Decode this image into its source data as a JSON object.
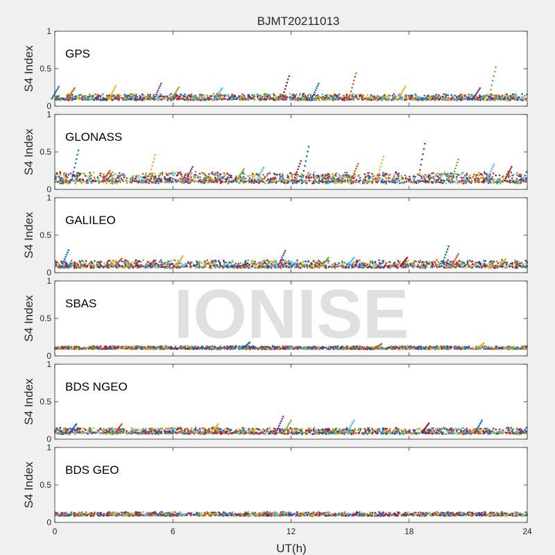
{
  "figure": {
    "title": "BJMT20211013",
    "xlabel": "UT(h)",
    "watermark": "IONISE",
    "background": "#f0f0f0",
    "axes_color": "#262626",
    "watermark_color": "#e0e0e0"
  },
  "chart_data": {
    "type": "scatter",
    "title": "BJMT20211013",
    "xlabel": "UT(h)",
    "ylabel": "S4 Index",
    "xlim": [
      0,
      24
    ],
    "ylim": [
      0,
      1
    ],
    "xticks": [
      0,
      6,
      12,
      18,
      24
    ],
    "yticks": [
      0,
      0.5,
      1
    ],
    "xtick_labels": [
      "0",
      "6",
      "12",
      "18",
      "24"
    ],
    "ytick_labels": [
      "0",
      "0.5",
      "1"
    ],
    "grid": false,
    "series_colors": [
      "#0072BD",
      "#D95319",
      "#EDB120",
      "#7E2F8E",
      "#77AC30",
      "#4DBEEE",
      "#A2142F"
    ],
    "panels": [
      {
        "label": "GPS",
        "baseline": 0.1,
        "spread": 0.04,
        "spikes": [
          {
            "x": 0.2,
            "y": 0.26
          },
          {
            "x": 1.0,
            "y": 0.24
          },
          {
            "x": 3.1,
            "y": 0.27
          },
          {
            "x": 5.4,
            "y": 0.3
          },
          {
            "x": 6.3,
            "y": 0.25
          },
          {
            "x": 8.5,
            "y": 0.24
          },
          {
            "x": 11.9,
            "y": 0.4
          },
          {
            "x": 13.4,
            "y": 0.3
          },
          {
            "x": 15.3,
            "y": 0.44
          },
          {
            "x": 17.8,
            "y": 0.26
          },
          {
            "x": 21.6,
            "y": 0.24
          },
          {
            "x": 22.4,
            "y": 0.52
          }
        ]
      },
      {
        "label": "GLONASS",
        "baseline": 0.12,
        "spread": 0.07,
        "spikes": [
          {
            "x": 1.2,
            "y": 0.52
          },
          {
            "x": 2.8,
            "y": 0.25
          },
          {
            "x": 5.1,
            "y": 0.46
          },
          {
            "x": 7.0,
            "y": 0.3
          },
          {
            "x": 9.6,
            "y": 0.27
          },
          {
            "x": 10.6,
            "y": 0.29
          },
          {
            "x": 12.5,
            "y": 0.38
          },
          {
            "x": 12.9,
            "y": 0.57
          },
          {
            "x": 15.4,
            "y": 0.34
          },
          {
            "x": 16.7,
            "y": 0.44
          },
          {
            "x": 18.8,
            "y": 0.61
          },
          {
            "x": 20.5,
            "y": 0.4
          },
          {
            "x": 22.3,
            "y": 0.33
          },
          {
            "x": 23.2,
            "y": 0.3
          }
        ]
      },
      {
        "label": "GALILEO",
        "baseline": 0.09,
        "spread": 0.05,
        "spikes": [
          {
            "x": 0.7,
            "y": 0.3
          },
          {
            "x": 3.4,
            "y": 0.19
          },
          {
            "x": 6.5,
            "y": 0.22
          },
          {
            "x": 11.7,
            "y": 0.29
          },
          {
            "x": 13.9,
            "y": 0.2
          },
          {
            "x": 15.2,
            "y": 0.2
          },
          {
            "x": 17.9,
            "y": 0.2
          },
          {
            "x": 20.0,
            "y": 0.35
          },
          {
            "x": 20.5,
            "y": 0.25
          },
          {
            "x": 22.9,
            "y": 0.18
          }
        ]
      },
      {
        "label": "SBAS",
        "baseline": 0.1,
        "spread": 0.02,
        "spikes": [
          {
            "x": 9.9,
            "y": 0.18
          },
          {
            "x": 16.6,
            "y": 0.16
          },
          {
            "x": 21.8,
            "y": 0.17
          }
        ]
      },
      {
        "label": "BDS NGEO",
        "baseline": 0.09,
        "spread": 0.04,
        "spikes": [
          {
            "x": 1.1,
            "y": 0.2
          },
          {
            "x": 3.4,
            "y": 0.2
          },
          {
            "x": 8.3,
            "y": 0.2
          },
          {
            "x": 11.6,
            "y": 0.3
          },
          {
            "x": 12.0,
            "y": 0.25
          },
          {
            "x": 15.2,
            "y": 0.25
          },
          {
            "x": 19.0,
            "y": 0.21
          },
          {
            "x": 21.7,
            "y": 0.25
          }
        ]
      },
      {
        "label": "BDS GEO",
        "baseline": 0.1,
        "spread": 0.025,
        "spikes": []
      }
    ]
  }
}
